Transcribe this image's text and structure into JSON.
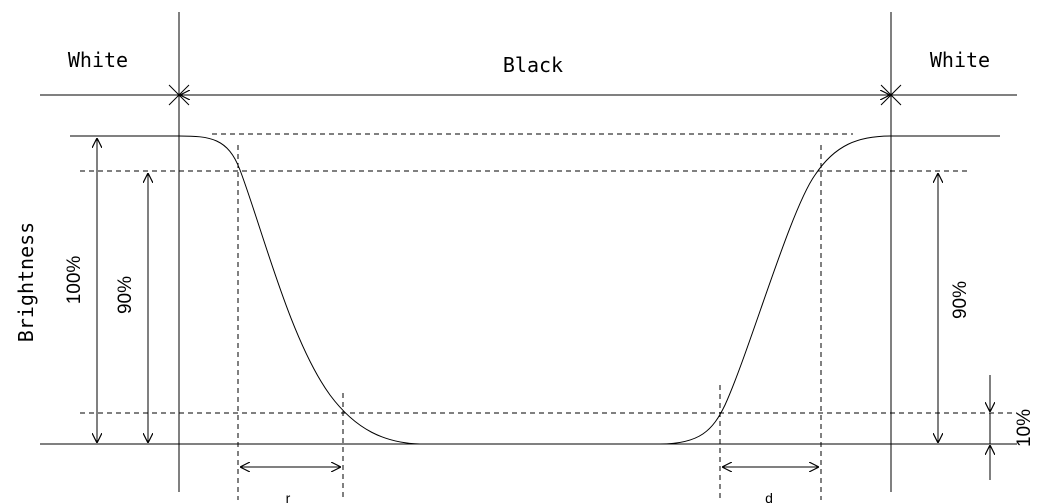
{
  "labels": {
    "white_left": "White",
    "black": "Black",
    "white_right": "White",
    "axis": "Brightness",
    "pct_100": "100%",
    "pct_90_left": "90%",
    "pct_90_right": "90%",
    "pct_10": "10%",
    "tr": "r",
    "td": "d"
  },
  "colors": {
    "line": "#000000",
    "background": "#ffffff"
  }
}
